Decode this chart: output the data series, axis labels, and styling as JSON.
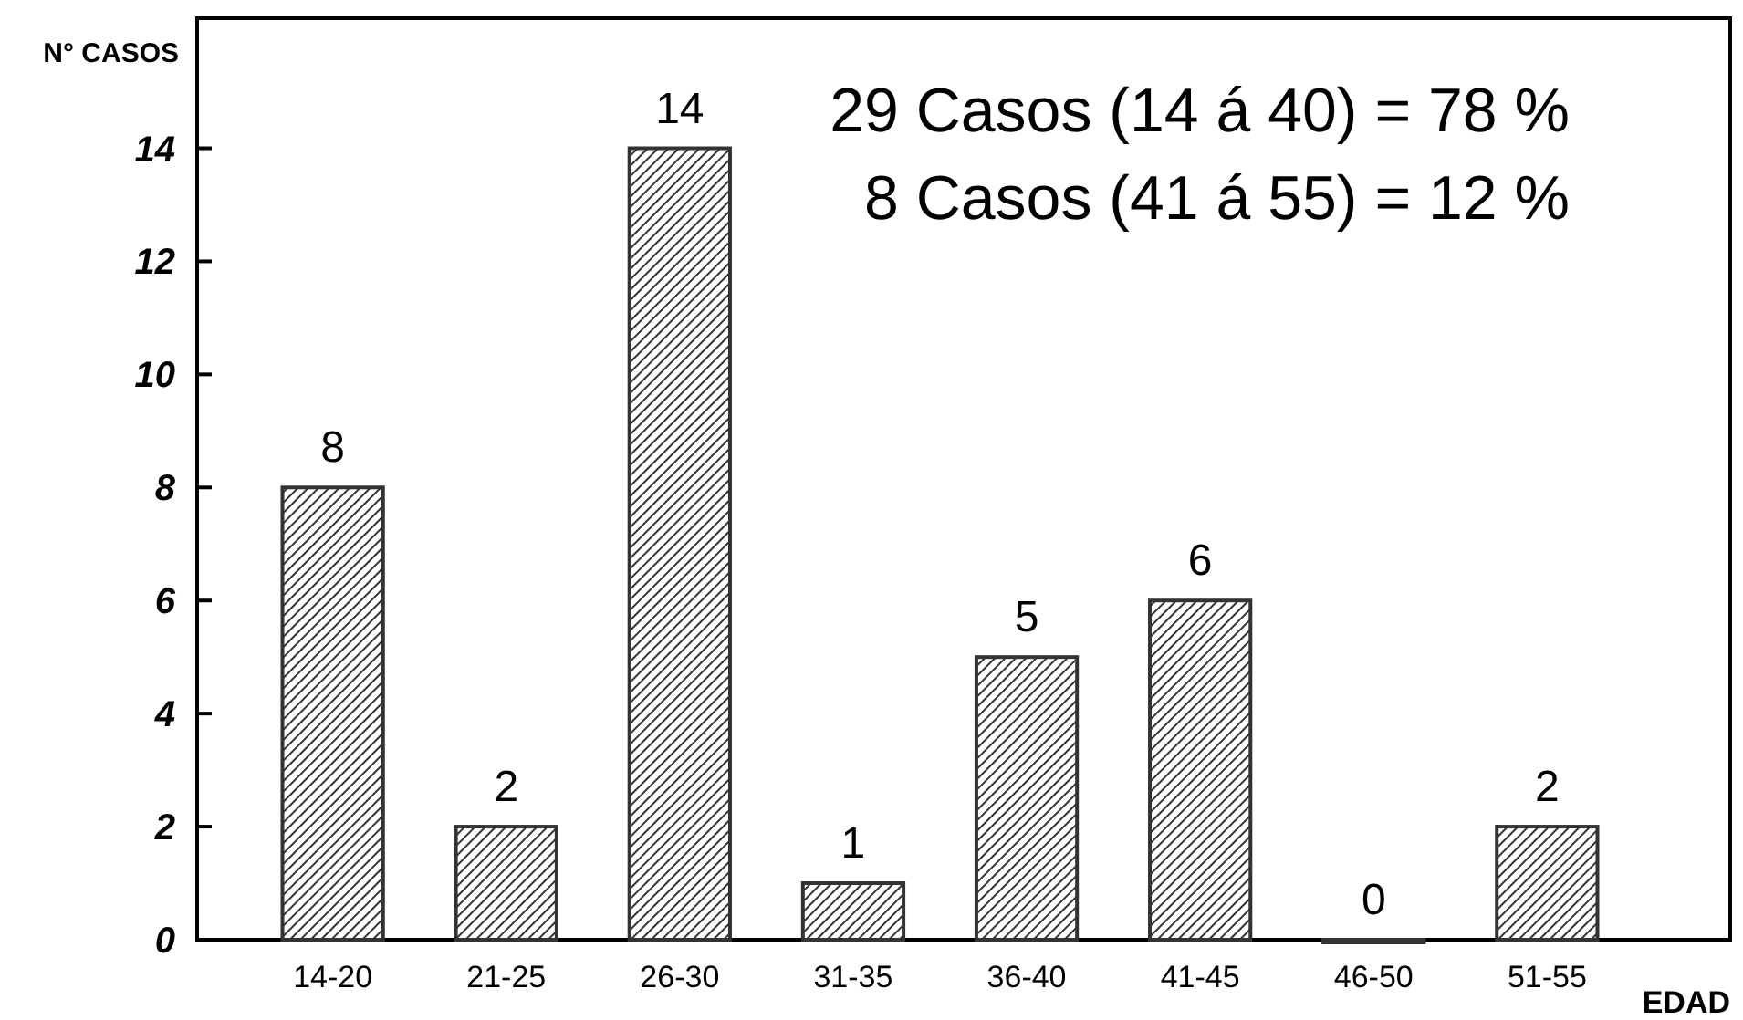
{
  "chart_data": {
    "type": "bar",
    "ylabel": "N° CASOS",
    "xlabel": "EDAD",
    "categories": [
      "14-20",
      "21-25",
      "26-30",
      "31-35",
      "36-40",
      "41-45",
      "46-50",
      "51-55"
    ],
    "values": [
      8,
      2,
      14,
      1,
      5,
      6,
      0,
      2
    ],
    "color": "#333333",
    "data_labels": true,
    "ylim": [
      0,
      16.3
    ],
    "yticks": [
      0,
      2,
      4,
      6,
      8,
      10,
      12,
      14
    ],
    "grid": false,
    "annotations": [
      "29 Casos (14 á 40) = 78 %",
      "8 Casos (41 á 55) = 12 %"
    ]
  }
}
